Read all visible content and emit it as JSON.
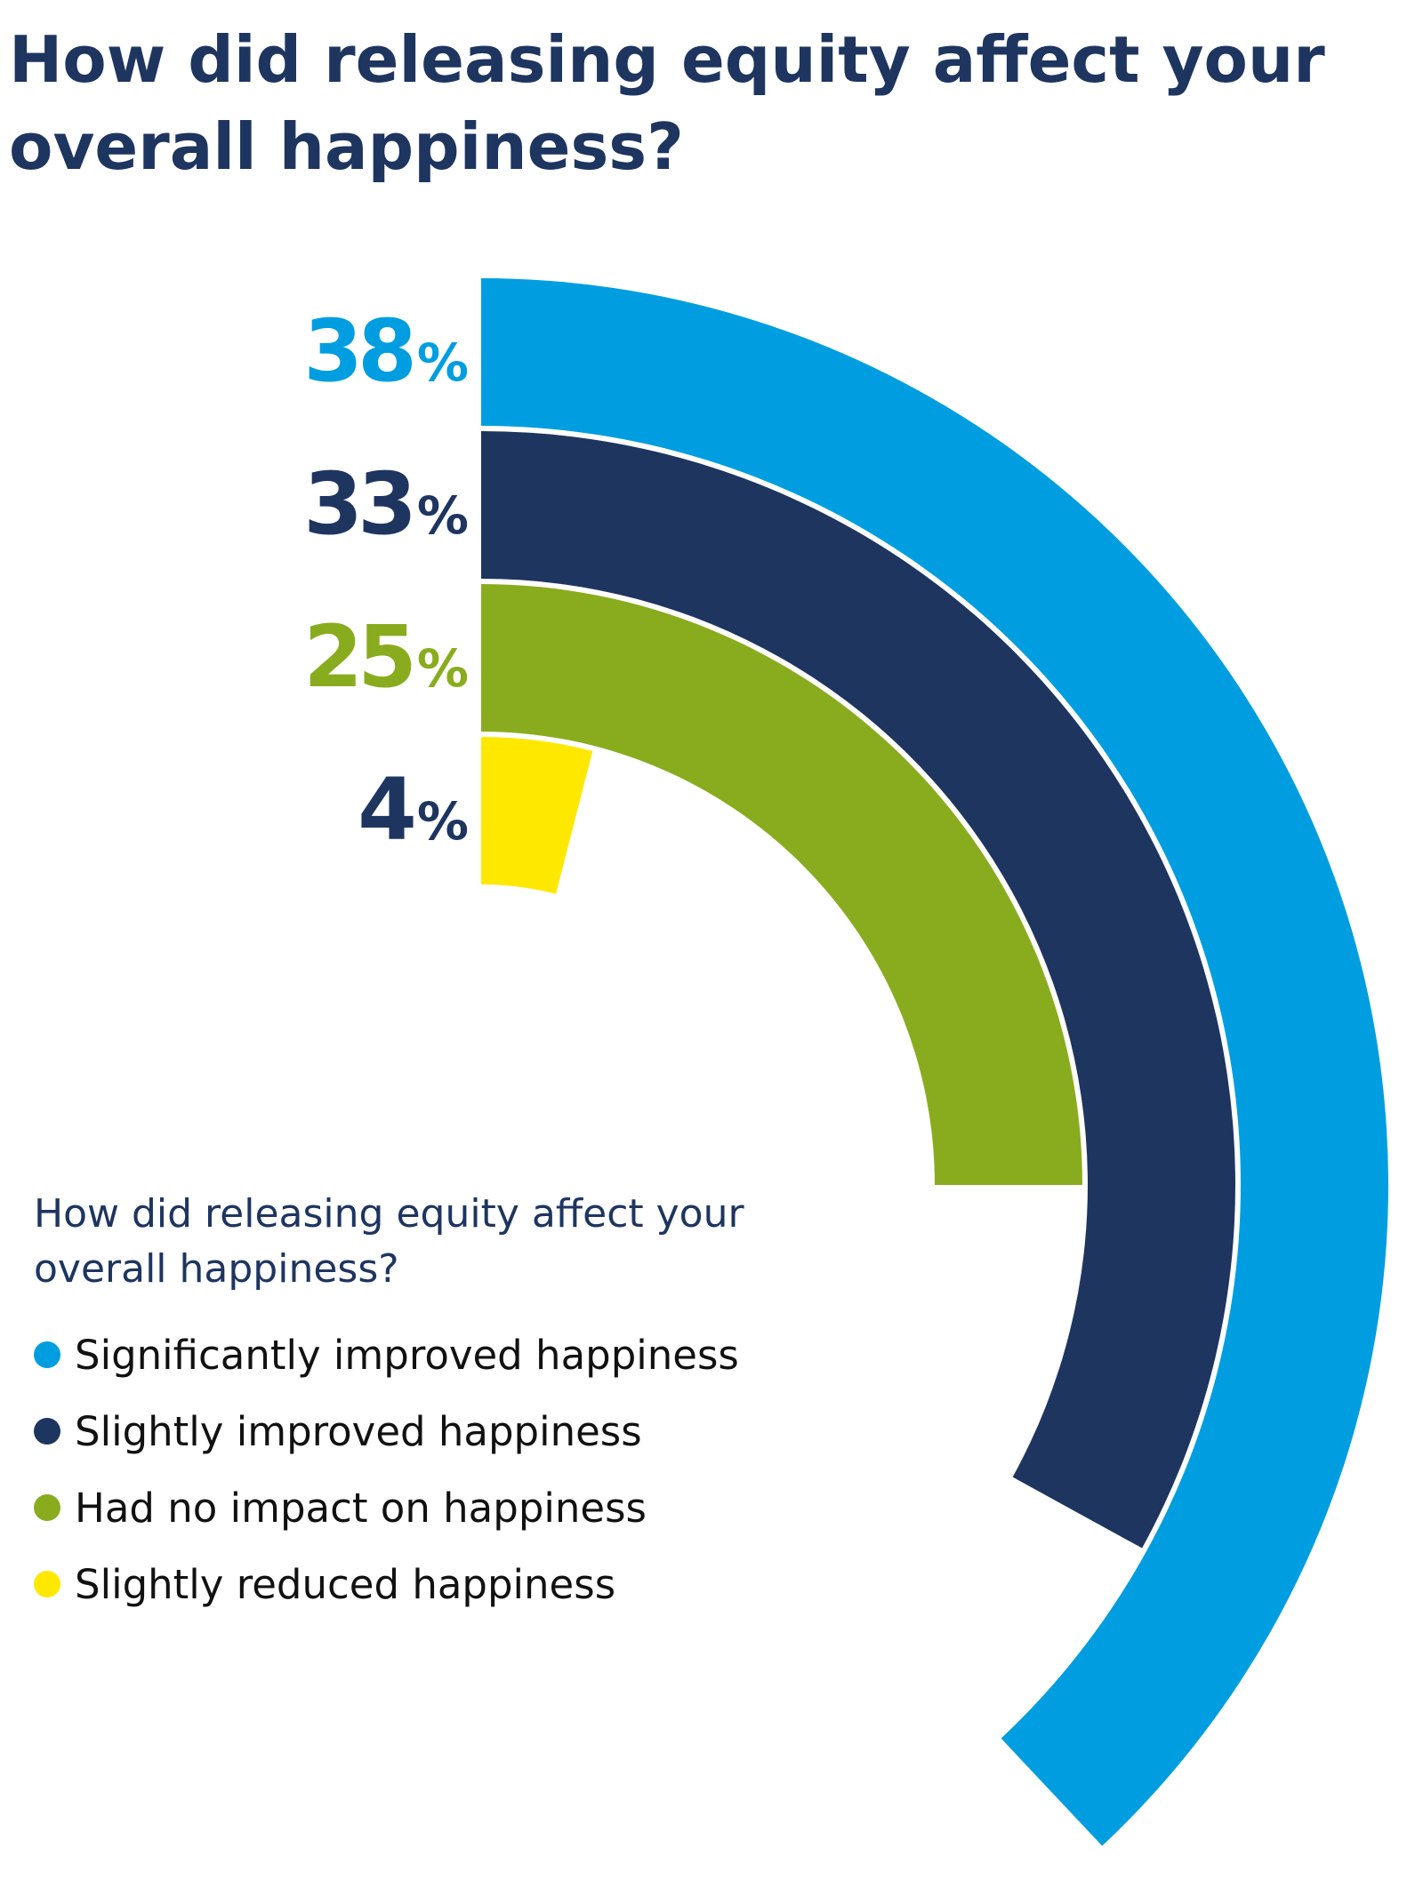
{
  "chart_data": {
    "type": "radial_bar",
    "title": "How did releasing equity affect your overall happiness?",
    "legend_title": "How did releasing equity affect your overall happiness?",
    "unit": "%",
    "legend_placement": "bottom-left",
    "categories": [
      "Significantly improved happiness",
      "Slightly improved happiness",
      "Had no impact on happiness",
      "Slightly reduced happiness"
    ],
    "values": [
      38,
      33,
      25,
      4
    ],
    "value_labels": [
      "38",
      "33",
      "25",
      "4"
    ],
    "colors": [
      "#009ee0",
      "#1e3560",
      "#89ac1f",
      "#ffe800"
    ],
    "label_colors": [
      "#009ee0",
      "#1e3560",
      "#89ac1f",
      "#1e3560"
    ],
    "full_circle_value": 100
  }
}
